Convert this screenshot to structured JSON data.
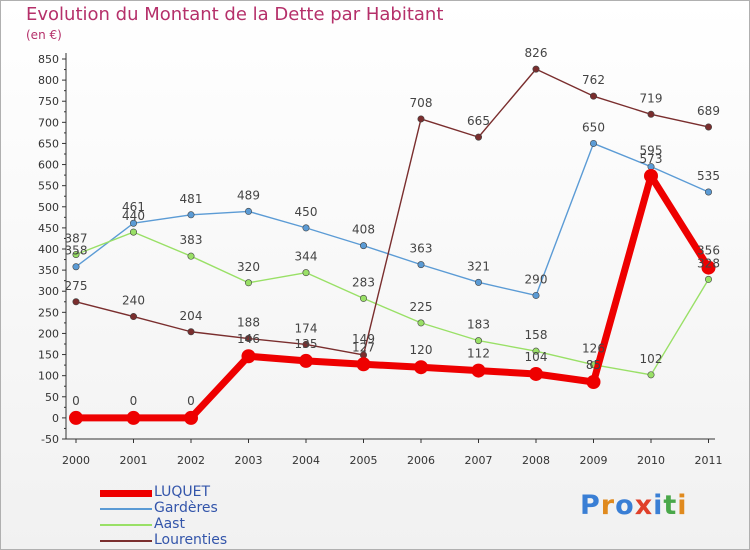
{
  "header": {
    "title": "Evolution du Montant de la Dette par Habitant",
    "unit": "(en €)"
  },
  "logo": {
    "text": "Proxiti",
    "letters": [
      {
        "ch": "P",
        "color": "#3a7fd5"
      },
      {
        "ch": "r",
        "color": "#e08a1e"
      },
      {
        "ch": "o",
        "color": "#3a7fd5"
      },
      {
        "ch": "x",
        "color": "#e0402a"
      },
      {
        "ch": "i",
        "color": "#3a7fd5"
      },
      {
        "ch": "t",
        "color": "#4aa84a"
      },
      {
        "ch": "i",
        "color": "#e08a1e"
      }
    ]
  },
  "chart_data": {
    "type": "line",
    "title": "Evolution du Montant de la Dette par Habitant",
    "ylabel": "(en €)",
    "x": [
      "2000",
      "2001",
      "2002",
      "2003",
      "2004",
      "2005",
      "2006",
      "2007",
      "2008",
      "2009",
      "2010",
      "2011"
    ],
    "ylim": [
      -50,
      850
    ],
    "ytick_step": 50,
    "grid": false,
    "legend_position": "bottom-left",
    "series": [
      {
        "name": "LUQUET",
        "color": "#ee0000",
        "values": [
          0,
          0,
          0,
          146,
          135,
          127,
          120,
          112,
          104,
          85,
          573,
          356
        ],
        "labels": [
          "0",
          "0",
          "0",
          "146",
          "135",
          "127",
          "120",
          "112",
          "104",
          "85",
          "573",
          "356"
        ]
      },
      {
        "name": "Gardères",
        "color": "#5b9bd5",
        "values": [
          358,
          461,
          481,
          489,
          450,
          408,
          363,
          321,
          290,
          650,
          595,
          535
        ],
        "labels": [
          "358",
          "461",
          "481",
          "489",
          "450",
          "408",
          "363",
          "321",
          "290",
          "650",
          "595",
          "535"
        ]
      },
      {
        "name": "Aast",
        "color": "#99e066",
        "values": [
          387,
          440,
          383,
          320,
          344,
          283,
          225,
          183,
          158,
          126,
          102,
          328
        ],
        "labels": [
          "387",
          "440",
          "383",
          "320",
          "344",
          "283",
          "225",
          "183",
          "158",
          "126",
          "102",
          "328"
        ]
      },
      {
        "name": "Lourenties",
        "color": "#7a2e2e",
        "values": [
          275,
          240,
          204,
          188,
          174,
          149,
          708,
          665,
          826,
          762,
          719,
          689
        ],
        "labels": [
          "275",
          "240",
          "204",
          "188",
          "174",
          "149",
          "708",
          "665",
          "826",
          "762",
          "719",
          "689"
        ]
      }
    ]
  }
}
